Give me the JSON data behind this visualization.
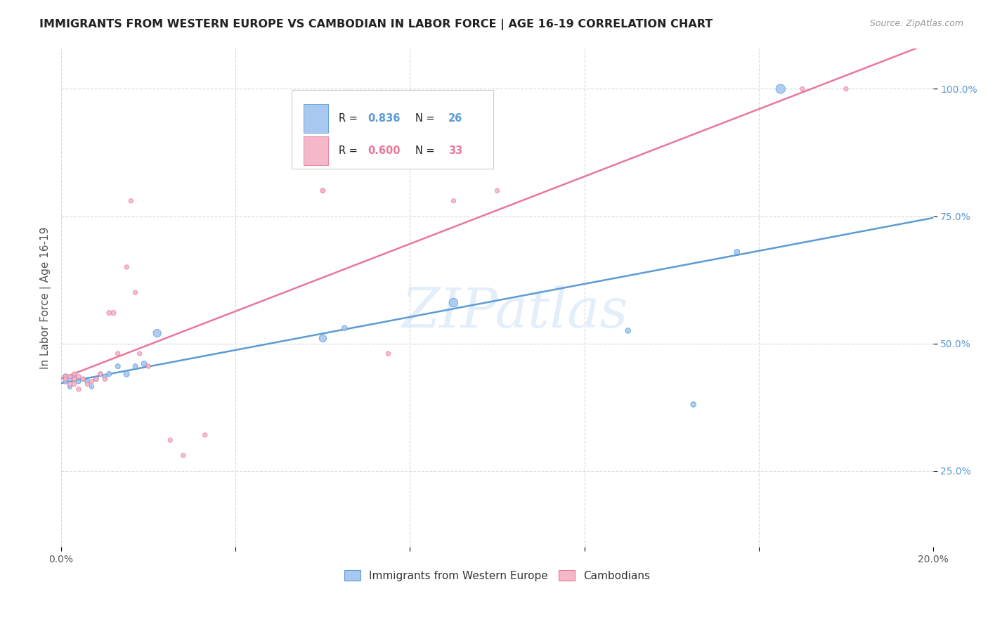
{
  "title": "IMMIGRANTS FROM WESTERN EUROPE VS CAMBODIAN IN LABOR FORCE | AGE 16-19 CORRELATION CHART",
  "source": "Source: ZipAtlas.com",
  "ylabel": "In Labor Force | Age 16-19",
  "x_min": 0.0,
  "x_max": 0.2,
  "y_min": 0.1,
  "y_max": 1.08,
  "x_ticks": [
    0.0,
    0.04,
    0.08,
    0.12,
    0.16,
    0.2
  ],
  "x_tick_labels": [
    "0.0%",
    "",
    "",
    "",
    "",
    "20.0%"
  ],
  "y_ticks": [
    0.25,
    0.5,
    0.75,
    1.0
  ],
  "y_tick_labels": [
    "25.0%",
    "50.0%",
    "75.0%",
    "100.0%"
  ],
  "blue_series": {
    "label": "Immigrants from Western Europe",
    "color": "#a8c8f0",
    "R": 0.836,
    "N": 26,
    "x": [
      0.001,
      0.001,
      0.002,
      0.002,
      0.003,
      0.003,
      0.004,
      0.005,
      0.006,
      0.007,
      0.008,
      0.009,
      0.01,
      0.011,
      0.013,
      0.015,
      0.017,
      0.019,
      0.022,
      0.06,
      0.065,
      0.09,
      0.13,
      0.145,
      0.155,
      0.165
    ],
    "y": [
      0.435,
      0.425,
      0.43,
      0.415,
      0.435,
      0.43,
      0.425,
      0.43,
      0.425,
      0.415,
      0.43,
      0.44,
      0.435,
      0.44,
      0.455,
      0.44,
      0.455,
      0.46,
      0.52,
      0.51,
      0.53,
      0.58,
      0.525,
      0.38,
      0.68,
      1.0
    ],
    "size": [
      30,
      25,
      25,
      20,
      20,
      20,
      20,
      20,
      25,
      20,
      25,
      20,
      25,
      25,
      25,
      35,
      25,
      30,
      65,
      55,
      30,
      80,
      30,
      30,
      30,
      90
    ]
  },
  "pink_series": {
    "label": "Cambodians",
    "color": "#f5b8c8",
    "R": 0.6,
    "N": 33,
    "x": [
      0.001,
      0.001,
      0.002,
      0.002,
      0.003,
      0.003,
      0.003,
      0.004,
      0.004,
      0.005,
      0.006,
      0.007,
      0.008,
      0.009,
      0.01,
      0.011,
      0.012,
      0.013,
      0.015,
      0.016,
      0.017,
      0.018,
      0.02,
      0.025,
      0.028,
      0.033,
      0.06,
      0.06,
      0.075,
      0.09,
      0.1,
      0.17,
      0.18
    ],
    "y": [
      0.435,
      0.43,
      0.435,
      0.42,
      0.44,
      0.43,
      0.42,
      0.41,
      0.435,
      0.43,
      0.42,
      0.425,
      0.43,
      0.44,
      0.43,
      0.56,
      0.56,
      0.48,
      0.65,
      0.78,
      0.6,
      0.48,
      0.455,
      0.31,
      0.28,
      0.32,
      0.8,
      0.8,
      0.48,
      0.78,
      0.8,
      1.0,
      1.0
    ],
    "size": [
      20,
      20,
      20,
      20,
      20,
      20,
      20,
      20,
      20,
      20,
      20,
      20,
      20,
      20,
      20,
      25,
      25,
      20,
      20,
      20,
      20,
      20,
      20,
      20,
      20,
      20,
      20,
      20,
      20,
      20,
      20,
      20,
      20
    ]
  },
  "blue_line_color": "#5b9bd5",
  "pink_line_color": "#e8789a",
  "watermark_text": "ZIPatlas",
  "watermark_color": "#d0e4f7",
  "background_color": "#ffffff",
  "grid_color": "#d8d8d8",
  "title_color": "#222222",
  "source_color": "#999999",
  "ylabel_color": "#555555",
  "xtick_color": "#555555",
  "ytick_color": "#5b9bd5"
}
